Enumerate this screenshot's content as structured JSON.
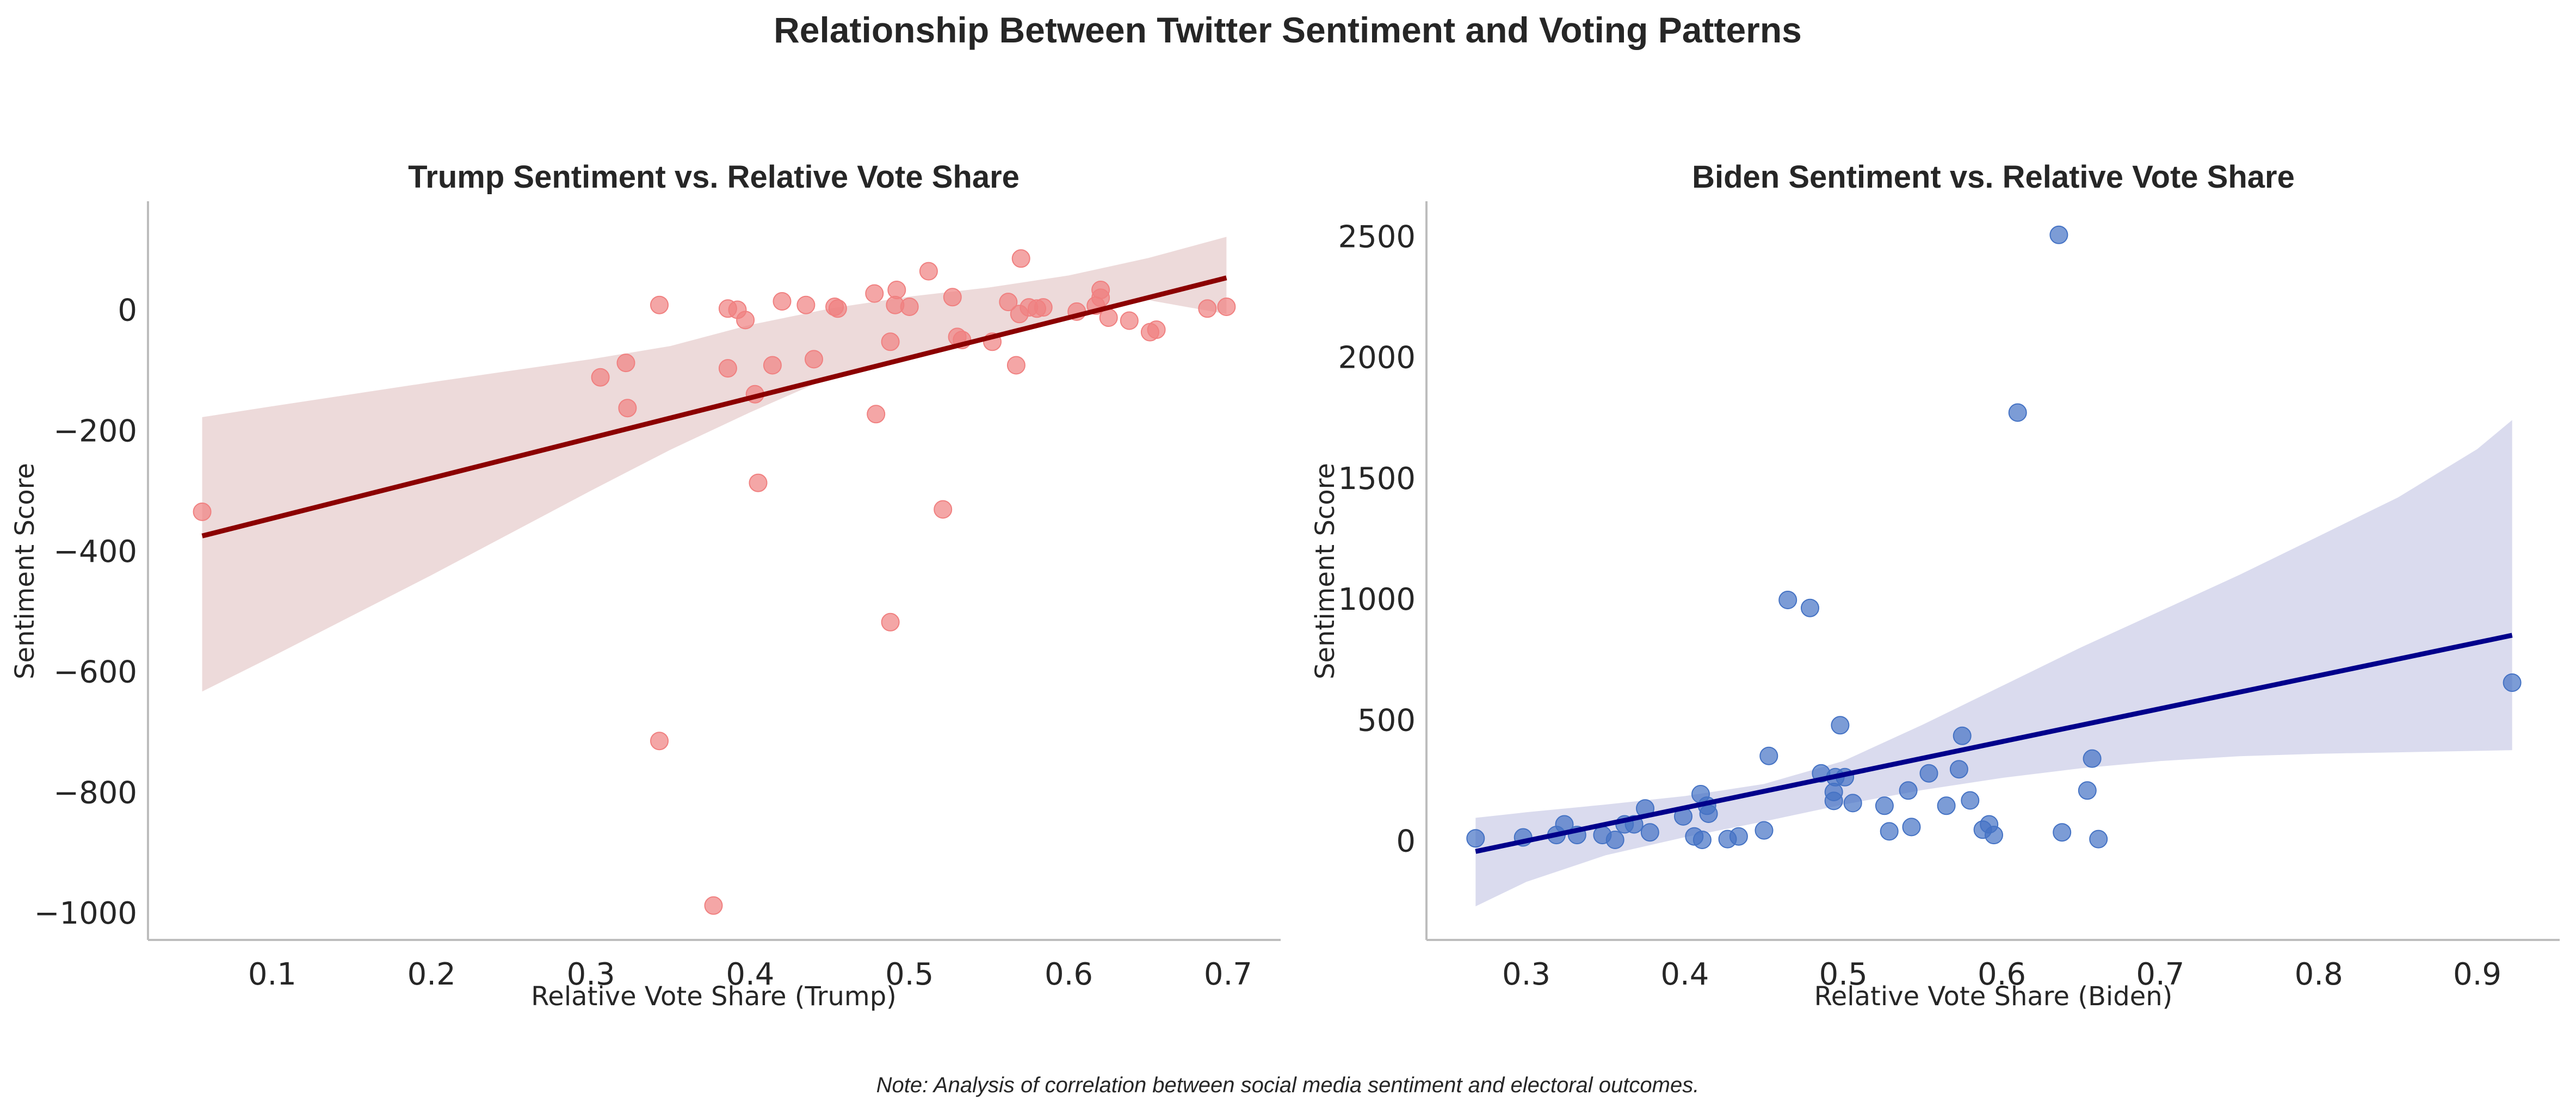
{
  "figure": {
    "title": "Relationship Between Twitter Sentiment and Voting Patterns",
    "note": "Note: Analysis of correlation between social media sentiment and electoral outcomes."
  },
  "chart_data": [
    {
      "type": "scatter",
      "title": "Trump Sentiment vs. Relative Vote Share",
      "xlabel": "Relative Vote Share (Trump)",
      "ylabel": "Sentiment Score",
      "xlim": [
        0.022,
        0.733
      ],
      "ylim": [
        -1045,
        180
      ],
      "xticks": [
        0.1,
        0.2,
        0.3,
        0.4,
        0.5,
        0.6,
        0.7
      ],
      "xtick_labels": [
        "0.1",
        "0.2",
        "0.3",
        "0.4",
        "0.5",
        "0.6",
        "0.7"
      ],
      "yticks": [
        0,
        -200,
        -400,
        -600,
        -800,
        -1000
      ],
      "ytick_labels": [
        "0",
        "−200",
        "−400",
        "−600",
        "−800",
        "−1000"
      ],
      "grid": false,
      "point_color": "#f08080",
      "line_color": "#8b0000",
      "band_color": "#dcb5b5",
      "points": [
        [
          0.056,
          -335
        ],
        [
          0.306,
          -112
        ],
        [
          0.322,
          -88
        ],
        [
          0.323,
          -163
        ],
        [
          0.343,
          8
        ],
        [
          0.343,
          -715
        ],
        [
          0.377,
          -988
        ],
        [
          0.386,
          2
        ],
        [
          0.386,
          -97
        ],
        [
          0.392,
          0
        ],
        [
          0.397,
          -17
        ],
        [
          0.403,
          -140
        ],
        [
          0.405,
          -287
        ],
        [
          0.414,
          -92
        ],
        [
          0.42,
          14
        ],
        [
          0.435,
          8
        ],
        [
          0.44,
          -82
        ],
        [
          0.453,
          5
        ],
        [
          0.455,
          2
        ],
        [
          0.478,
          27
        ],
        [
          0.479,
          -173
        ],
        [
          0.488,
          -53
        ],
        [
          0.488,
          -518
        ],
        [
          0.491,
          8
        ],
        [
          0.492,
          33
        ],
        [
          0.5,
          5
        ],
        [
          0.512,
          64
        ],
        [
          0.521,
          -331
        ],
        [
          0.527,
          21
        ],
        [
          0.53,
          -45
        ],
        [
          0.533,
          -50
        ],
        [
          0.552,
          -53
        ],
        [
          0.562,
          13
        ],
        [
          0.567,
          -92
        ],
        [
          0.569,
          -7
        ],
        [
          0.57,
          85
        ],
        [
          0.575,
          4
        ],
        [
          0.58,
          2
        ],
        [
          0.584,
          4
        ],
        [
          0.605,
          -3
        ],
        [
          0.617,
          7
        ],
        [
          0.62,
          20
        ],
        [
          0.62,
          33
        ],
        [
          0.625,
          -13
        ],
        [
          0.638,
          -18
        ],
        [
          0.651,
          -37
        ],
        [
          0.655,
          -33
        ],
        [
          0.687,
          2
        ],
        [
          0.699,
          5
        ]
      ],
      "regression": {
        "x": [
          0.056,
          0.699
        ],
        "y": [
          -375,
          53
        ]
      },
      "ci_band": {
        "x": [
          0.056,
          0.1,
          0.2,
          0.3,
          0.35,
          0.4,
          0.45,
          0.5,
          0.55,
          0.6,
          0.65,
          0.699
        ],
        "upper": [
          -178,
          -160,
          -120,
          -82,
          -60,
          -25,
          2,
          22,
          37,
          57,
          86,
          121
        ],
        "lower": [
          -633,
          -575,
          -440,
          -300,
          -232,
          -170,
          -112,
          -75,
          -45,
          -15,
          16,
          -7
        ]
      }
    },
    {
      "type": "scatter",
      "title": "Biden Sentiment vs. Relative Vote Share",
      "xlabel": "Relative Vote Share (Biden)",
      "ylabel": "Sentiment Score",
      "xlim": [
        0.237,
        0.952
      ],
      "ylim": [
        -410,
        2645
      ],
      "xticks": [
        0.3,
        0.4,
        0.5,
        0.6,
        0.7,
        0.8,
        0.9
      ],
      "xtick_labels": [
        "0.3",
        "0.4",
        "0.5",
        "0.6",
        "0.7",
        "0.8",
        "0.9"
      ],
      "yticks": [
        0,
        500,
        1000,
        1500,
        2000,
        2500
      ],
      "ytick_labels": [
        "0",
        "500",
        "1000",
        "1500",
        "2000",
        "2500"
      ],
      "grid": false,
      "point_color": "#4472c4",
      "line_color": "#00008b",
      "band_color": "#b5b7de",
      "points": [
        [
          0.268,
          10
        ],
        [
          0.298,
          14
        ],
        [
          0.319,
          24
        ],
        [
          0.324,
          68
        ],
        [
          0.332,
          24
        ],
        [
          0.348,
          24
        ],
        [
          0.356,
          4
        ],
        [
          0.362,
          68
        ],
        [
          0.368,
          68
        ],
        [
          0.375,
          134
        ],
        [
          0.378,
          35
        ],
        [
          0.399,
          101
        ],
        [
          0.406,
          18
        ],
        [
          0.41,
          193
        ],
        [
          0.411,
          4
        ],
        [
          0.414,
          145
        ],
        [
          0.415,
          112
        ],
        [
          0.427,
          7
        ],
        [
          0.434,
          18
        ],
        [
          0.45,
          43
        ],
        [
          0.453,
          351
        ],
        [
          0.465,
          996
        ],
        [
          0.479,
          963
        ],
        [
          0.486,
          279
        ],
        [
          0.494,
          165
        ],
        [
          0.494,
          202
        ],
        [
          0.495,
          263
        ],
        [
          0.498,
          478
        ],
        [
          0.501,
          263
        ],
        [
          0.506,
          156
        ],
        [
          0.526,
          145
        ],
        [
          0.529,
          39
        ],
        [
          0.541,
          208
        ],
        [
          0.543,
          57
        ],
        [
          0.554,
          279
        ],
        [
          0.565,
          145
        ],
        [
          0.573,
          296
        ],
        [
          0.575,
          434
        ],
        [
          0.58,
          167
        ],
        [
          0.588,
          46
        ],
        [
          0.592,
          68
        ],
        [
          0.595,
          24
        ],
        [
          0.61,
          1771
        ],
        [
          0.636,
          2506
        ],
        [
          0.638,
          35
        ],
        [
          0.654,
          208
        ],
        [
          0.657,
          340
        ],
        [
          0.661,
          7
        ],
        [
          0.922,
          654
        ]
      ],
      "regression": {
        "x": [
          0.268,
          0.922
        ],
        "y": [
          -44,
          850
        ]
      },
      "ci_band": {
        "x": [
          0.268,
          0.3,
          0.35,
          0.4,
          0.45,
          0.5,
          0.55,
          0.6,
          0.65,
          0.7,
          0.75,
          0.8,
          0.85,
          0.9,
          0.922
        ],
        "upper": [
          95,
          118,
          150,
          185,
          235,
          330,
          480,
          640,
          800,
          950,
          1100,
          1260,
          1420,
          1620,
          1740
        ],
        "lower": [
          -271,
          -170,
          -60,
          15,
          80,
          150,
          210,
          260,
          300,
          330,
          350,
          360,
          366,
          372,
          375
        ]
      }
    }
  ]
}
